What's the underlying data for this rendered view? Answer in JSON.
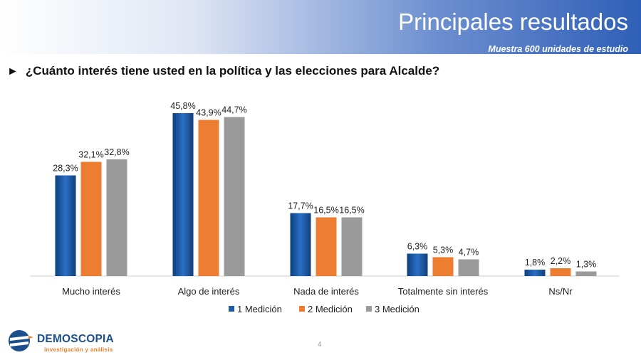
{
  "header": {
    "title": "Principales resultados",
    "subtitle": "Muestra 600 unidades de estudio"
  },
  "question": {
    "arrow": "►",
    "text": "¿Cuánto interés tiene usted en la política y las elecciones para Alcalde?"
  },
  "page_number": "4",
  "logo": {
    "name": "DEMOSCOPIA",
    "tagline": "investigación y análisis"
  },
  "chart_data": {
    "type": "bar",
    "categories": [
      "Mucho interés",
      "Algo de interés",
      "Nada de interés",
      "Totalmente sin interés",
      "Ns/Nr"
    ],
    "series": [
      {
        "name": "1 Medición",
        "color": "#1f5aa6",
        "values": [
          28.3,
          45.8,
          17.7,
          6.3,
          1.8
        ],
        "labels": [
          "28,3%",
          "45,8%",
          "17,7%",
          "6,3%",
          "1,8%"
        ]
      },
      {
        "name": "2 Medición",
        "color": "#ed7d31",
        "values": [
          32.1,
          43.9,
          16.5,
          5.3,
          2.2
        ],
        "labels": [
          "32,1%",
          "43,9%",
          "16,5%",
          "5,3%",
          "2,2%"
        ]
      },
      {
        "name": "3 Medición",
        "color": "#9a9a9a",
        "values": [
          32.8,
          44.7,
          16.5,
          4.7,
          1.3
        ],
        "labels": [
          "32,8%",
          "44,7%",
          "16,5%",
          "4,7%",
          "1,3%"
        ]
      }
    ],
    "ylim": [
      0,
      50
    ],
    "grid": false,
    "legend": "bottom"
  }
}
